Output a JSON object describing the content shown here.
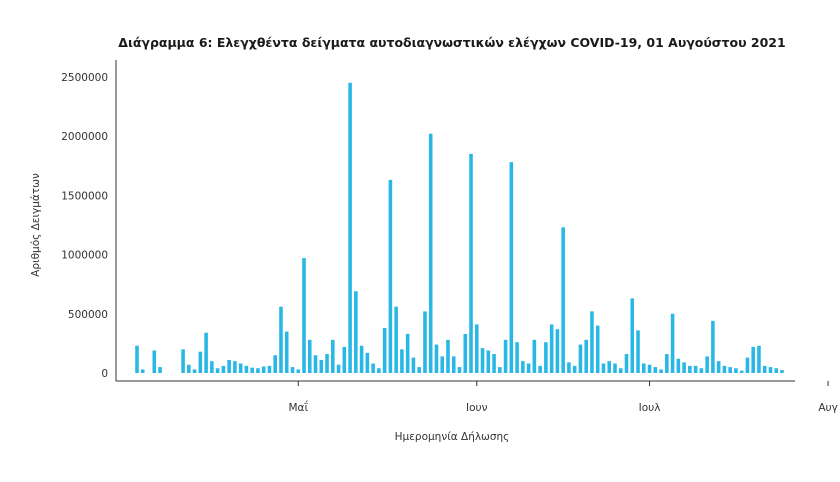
{
  "chart_data": {
    "type": "bar",
    "title": "Διάγραμμα 6: Ελεγχθέντα δείγματα αυτοδιαγνωστικών ελέγχων COVID-19, 01 Αυγούστου 2021",
    "xlabel": "Ημερομηνία Δήλωσης",
    "ylabel": "Αριθμός Δειγμάτων",
    "ylim": [
      0,
      2600000
    ],
    "y_ticks": [
      0,
      500000,
      1000000,
      1500000,
      2000000,
      2500000
    ],
    "y_tick_labels": [
      "0",
      "500000",
      "1000000",
      "1500000",
      "2000000",
      "2500000"
    ],
    "x_ticks": [
      {
        "label": "Μαΐ",
        "index": 28
      },
      {
        "label": "Ιουν",
        "index": 59
      },
      {
        "label": "Ιουλ",
        "index": 89
      },
      {
        "label": "Αυγ",
        "index": 120
      }
    ],
    "grid": false,
    "bar_color": "#29b8e5",
    "values": [
      230000,
      30000,
      0,
      190000,
      50000,
      0,
      0,
      0,
      200000,
      70000,
      30000,
      180000,
      340000,
      100000,
      40000,
      60000,
      110000,
      100000,
      80000,
      60000,
      45000,
      40000,
      55000,
      60000,
      150000,
      560000,
      350000,
      50000,
      30000,
      970000,
      280000,
      150000,
      110000,
      160000,
      280000,
      70000,
      220000,
      2450000,
      690000,
      230000,
      170000,
      80000,
      40000,
      380000,
      1630000,
      560000,
      200000,
      330000,
      130000,
      50000,
      520000,
      2020000,
      240000,
      140000,
      280000,
      140000,
      50000,
      330000,
      1850000,
      410000,
      210000,
      190000,
      160000,
      50000,
      280000,
      1780000,
      260000,
      100000,
      80000,
      280000,
      60000,
      260000,
      410000,
      370000,
      1230000,
      90000,
      60000,
      240000,
      280000,
      520000,
      400000,
      80000,
      100000,
      80000,
      40000,
      160000,
      630000,
      360000,
      80000,
      70000,
      50000,
      30000,
      160000,
      500000,
      120000,
      90000,
      60000,
      60000,
      40000,
      140000,
      440000,
      100000,
      60000,
      50000,
      40000,
      20000,
      130000,
      220000,
      230000,
      60000,
      50000,
      40000,
      25000
    ]
  }
}
